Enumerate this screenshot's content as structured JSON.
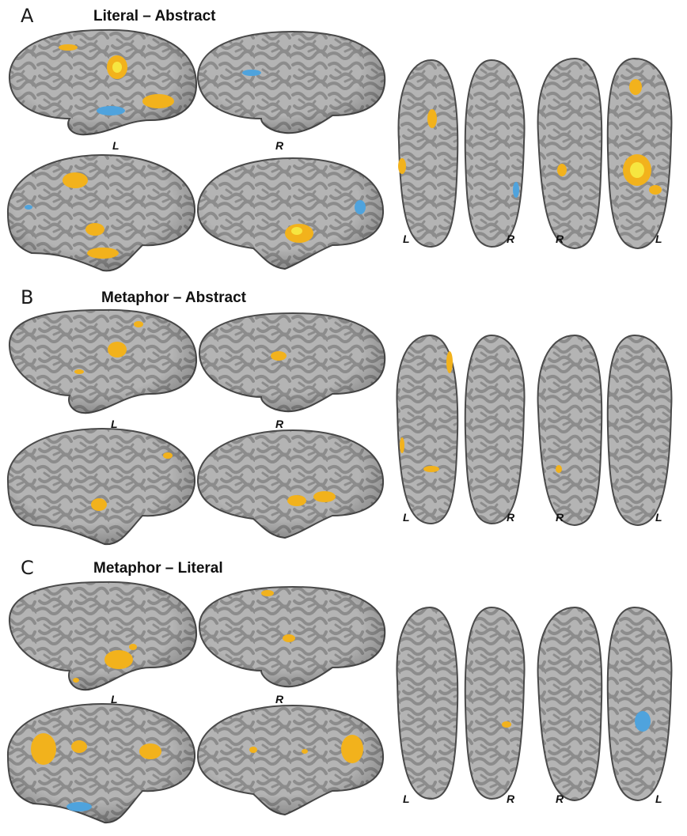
{
  "colors": {
    "background": "#ffffff",
    "cortex_light": "#b9b9b9",
    "cortex_dark": "#8f8f8f",
    "cortex_outline": "#4a4a4a",
    "activation_positive": "#f2b21c",
    "activation_positive_peak": "#f6e640",
    "activation_negative": "#4fa3dd"
  },
  "panels": [
    {
      "letter": "A",
      "title": "Literal – Abstract",
      "lateral_left_label": "L",
      "lateral_right_label": "R",
      "ventral_labels": [
        "L",
        "R"
      ],
      "dorsal_labels": [
        "R",
        "L"
      ]
    },
    {
      "letter": "B",
      "title": "Metaphor – Abstract",
      "lateral_left_label": "L",
      "lateral_right_label": "R",
      "ventral_labels": [
        "L",
        "R"
      ],
      "dorsal_labels": [
        "R",
        "L"
      ]
    },
    {
      "letter": "C",
      "title": "Metaphor – Literal",
      "lateral_left_label": "L",
      "lateral_right_label": "R",
      "ventral_labels": [
        "L",
        "R"
      ],
      "dorsal_labels": [
        "R",
        "L"
      ]
    }
  ]
}
